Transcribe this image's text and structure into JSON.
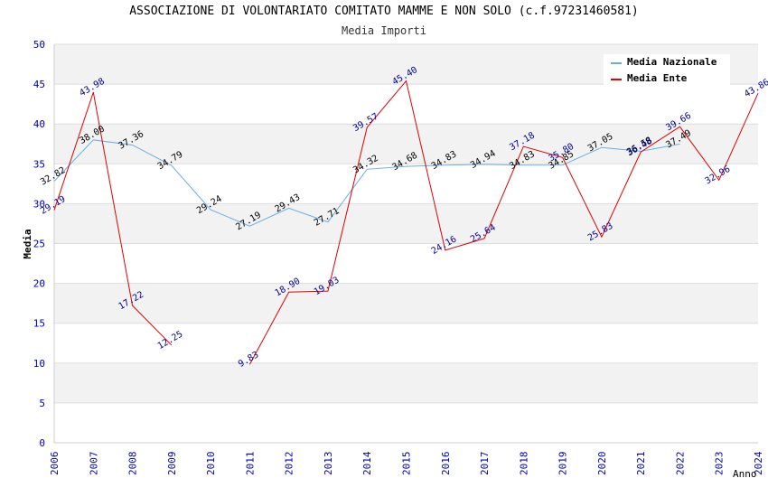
{
  "title": "ASSOCIAZIONE DI VOLONTARIATO COMITATO MAMME E NON SOLO (c.f.97231460581)",
  "subtitle": "Media Importi",
  "colors": {
    "nazionale": "#6aaee8",
    "ente": "#e00000",
    "band": "#f2f2f2",
    "grid": "#dddddd",
    "tick": "#0000aa"
  },
  "chart_data": {
    "type": "line",
    "title": "ASSOCIAZIONE DI VOLONTARIATO COMITATO MAMME E NON SOLO (c.f.97231460581)",
    "subtitle": "Media Importi",
    "xlabel": "Anno",
    "ylabel": "Media",
    "ylim": [
      0,
      50
    ],
    "yticks": [
      0,
      5,
      10,
      15,
      20,
      25,
      30,
      35,
      40,
      45,
      50
    ],
    "categories": [
      "2006",
      "2007",
      "2008",
      "2009",
      "2010",
      "2011",
      "2012",
      "2013",
      "2014",
      "2015",
      "2016",
      "2017",
      "2018",
      "2019",
      "2020",
      "2021",
      "2022",
      "2023",
      "2024"
    ],
    "legend_position": "top-right",
    "series": [
      {
        "name": "Media Nazionale",
        "key": "nazionale",
        "values": [
          32.82,
          38.0,
          37.36,
          34.79,
          29.24,
          27.19,
          29.43,
          27.71,
          34.32,
          34.68,
          34.83,
          34.94,
          34.83,
          34.85,
          37.05,
          36.58,
          37.49,
          null,
          null
        ],
        "labels": [
          "32.82",
          "38.00",
          "37.36",
          "34.79",
          "29.24",
          "27.19",
          "29.43",
          "27.71",
          "34.32",
          "34.68",
          "34.83",
          "34.94",
          "34.83",
          "34.85",
          "37.05",
          "36.58",
          "37.49",
          null,
          null
        ]
      },
      {
        "name": "Media Ente",
        "key": "ente",
        "values": [
          29.19,
          43.98,
          17.22,
          12.25,
          null,
          9.83,
          18.9,
          19.03,
          39.57,
          45.4,
          24.16,
          25.64,
          37.18,
          35.8,
          25.83,
          36.48,
          39.66,
          32.96,
          43.86
        ],
        "labels": [
          "29.19",
          "43.98",
          "17.22",
          "12.25",
          null,
          "9.83",
          "18.90",
          "19.03",
          "39.57",
          "45.40",
          "24.16",
          "25.64",
          "37.18",
          "35.80",
          "25.83",
          "36.48",
          "39.66",
          "32.96",
          "43.86"
        ]
      }
    ]
  }
}
